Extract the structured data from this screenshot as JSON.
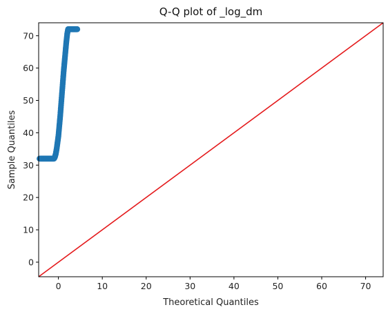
{
  "chart_data": {
    "type": "scatter",
    "title": "Q-Q plot of _log_dm",
    "xlabel": "Theoretical Quantiles",
    "ylabel": "Sample Quantiles",
    "xlim": [
      -4.5,
      74
    ],
    "ylim": [
      -4.5,
      74
    ],
    "xticks": [
      0,
      10,
      20,
      30,
      40,
      50,
      60,
      70
    ],
    "yticks": [
      0,
      10,
      20,
      30,
      40,
      50,
      60,
      70
    ],
    "grid": false,
    "colors": {
      "points": "#1f77b4",
      "reference_line": "#e41a1c"
    },
    "series": [
      {
        "type": "scatter",
        "points": [
          [
            -4.3,
            32
          ],
          [
            -4.0,
            32
          ],
          [
            -3.7,
            32
          ],
          [
            -3.4,
            32
          ],
          [
            -3.1,
            32
          ],
          [
            -2.8,
            32
          ],
          [
            -2.5,
            32
          ],
          [
            -2.2,
            32
          ],
          [
            -1.9,
            32
          ],
          [
            -1.6,
            32
          ],
          [
            -1.3,
            32
          ],
          [
            -1.0,
            32
          ],
          [
            -0.8,
            32.5
          ],
          [
            -0.6,
            33.5
          ],
          [
            -0.4,
            35
          ],
          [
            -0.2,
            37
          ],
          [
            0.0,
            39
          ],
          [
            0.2,
            42
          ],
          [
            0.4,
            45
          ],
          [
            0.6,
            48.5
          ],
          [
            0.8,
            52
          ],
          [
            1.0,
            55.5
          ],
          [
            1.2,
            59
          ],
          [
            1.4,
            62
          ],
          [
            1.6,
            65
          ],
          [
            1.8,
            68
          ],
          [
            2.0,
            70.5
          ],
          [
            2.2,
            72
          ],
          [
            2.5,
            72
          ],
          [
            2.8,
            72
          ],
          [
            3.1,
            72
          ],
          [
            3.4,
            72
          ],
          [
            3.7,
            72
          ],
          [
            4.0,
            72
          ],
          [
            4.3,
            72
          ]
        ]
      },
      {
        "type": "line",
        "points": [
          [
            -4.5,
            -4.5
          ],
          [
            74,
            74
          ]
        ]
      }
    ]
  }
}
